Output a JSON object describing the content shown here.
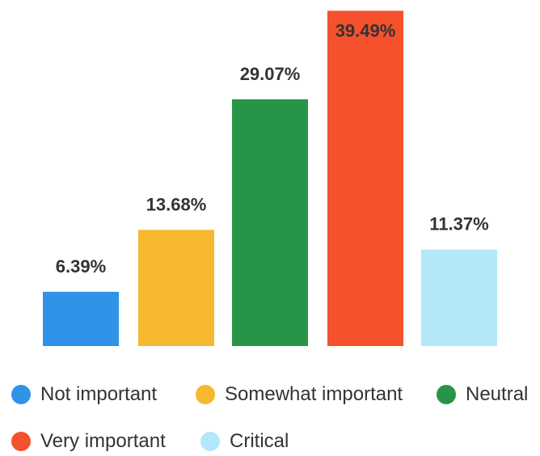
{
  "chart_data": {
    "type": "bar",
    "categories": [
      "Not important",
      "Somewhat important",
      "Neutral",
      "Very important",
      "Critical"
    ],
    "values": [
      6.39,
      13.68,
      29.07,
      39.49,
      11.37
    ],
    "value_labels": [
      "6.39%",
      "13.68%",
      "29.07%",
      "39.49%",
      "11.37%"
    ],
    "colors": [
      "#2f93e8",
      "#f5b82e",
      "#289447",
      "#f4512c",
      "#b3e8fb"
    ],
    "ylim": [
      0,
      40
    ],
    "grid": false,
    "legend_position": "bottom"
  },
  "legend": {
    "items": [
      {
        "label": "Not important",
        "color": "#2f93e8"
      },
      {
        "label": "Somewhat important",
        "color": "#f5b82e"
      },
      {
        "label": "Neutral",
        "color": "#289447"
      },
      {
        "label": "Very important",
        "color": "#f4512c"
      },
      {
        "label": "Critical",
        "color": "#b3e8fb"
      }
    ]
  }
}
